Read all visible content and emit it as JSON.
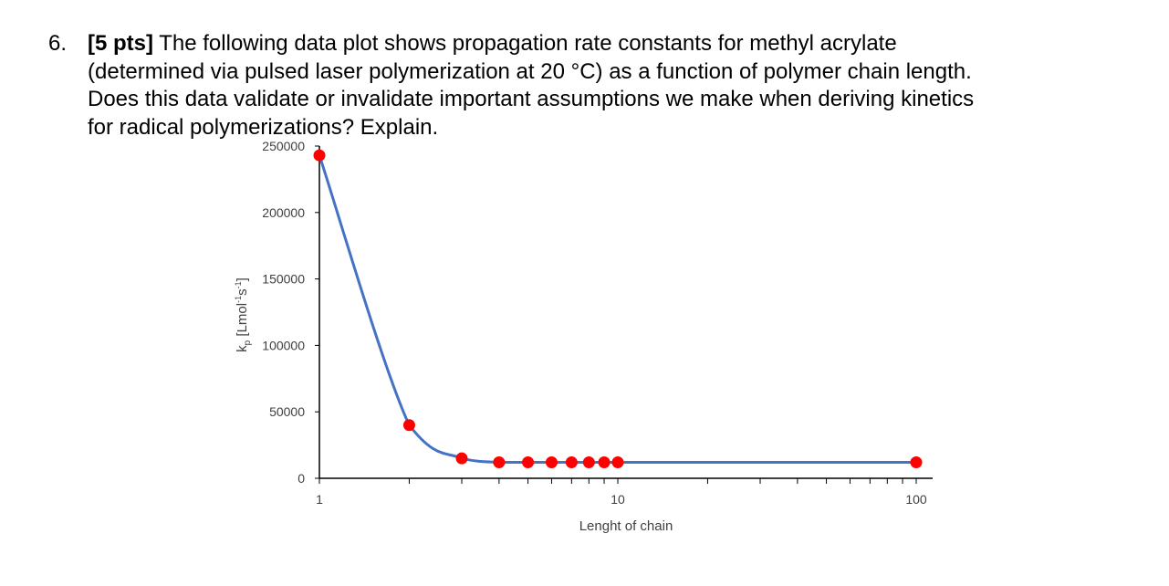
{
  "question": {
    "number": "6.",
    "points": "[5 pts]",
    "lines": [
      " The following data plot shows propagation rate constants for methyl acrylate",
      "(determined via pulsed laser polymerization at 20 °C) as a function of polymer chain length.",
      "Does this data validate or invalidate important assumptions we make when deriving kinetics",
      "for radical polymerizations? Explain."
    ]
  },
  "chart_data": {
    "type": "scatter",
    "x_scale": "log",
    "xlim": [
      1,
      100
    ],
    "ylim": [
      0,
      250000
    ],
    "xlabel": "Lenght of chain",
    "ylabel_main": "k",
    "ylabel_sub": "p",
    "ylabel_units_1": " [Lmol",
    "ylabel_units_1_sup": "-1",
    "ylabel_units_2": "s",
    "ylabel_units_2_sup": "-1",
    "ylabel_units_end": "]",
    "x_ticks": [
      {
        "value": 1,
        "label": "1"
      },
      {
        "value": 10,
        "label": "10"
      },
      {
        "value": 100,
        "label": "100"
      }
    ],
    "y_ticks": [
      {
        "value": 0,
        "label": "0"
      },
      {
        "value": 50000,
        "label": "50000"
      },
      {
        "value": 100000,
        "label": "100000"
      },
      {
        "value": 150000,
        "label": "150000"
      },
      {
        "value": 200000,
        "label": "200000"
      },
      {
        "value": 250000,
        "label": "250000"
      }
    ],
    "series": [
      {
        "points": [
          {
            "x": 1,
            "y": 243000
          },
          {
            "x": 2,
            "y": 40000
          },
          {
            "x": 3,
            "y": 15000
          },
          {
            "x": 4,
            "y": 12000
          },
          {
            "x": 5,
            "y": 12000
          },
          {
            "x": 6,
            "y": 12000
          },
          {
            "x": 7,
            "y": 12000
          },
          {
            "x": 8,
            "y": 12000
          },
          {
            "x": 9,
            "y": 12000
          },
          {
            "x": 10,
            "y": 12000
          },
          {
            "x": 100,
            "y": 12000
          }
        ],
        "marker_color": "#ff0000",
        "line_color": "#4472c4"
      }
    ]
  }
}
